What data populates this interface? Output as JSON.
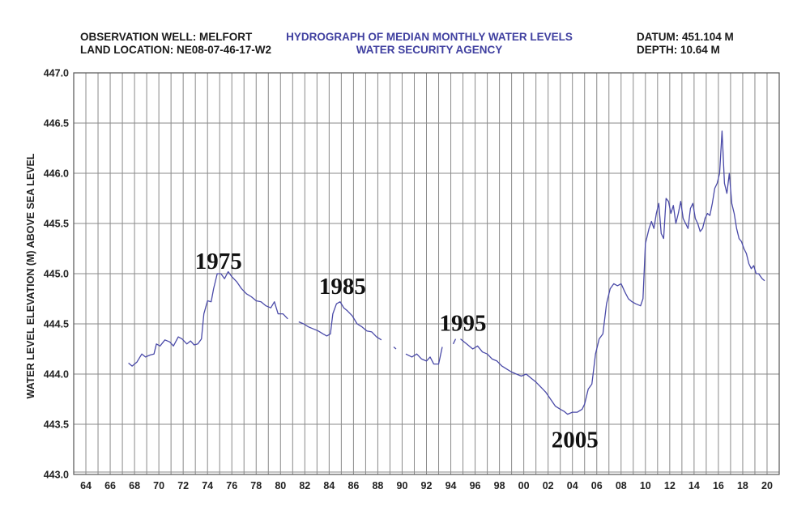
{
  "header": {
    "left_line1": "OBSERVATION WELL: MELFORT",
    "left_line2": "LAND LOCATION: NE08-07-46-17-W2",
    "center_line1": "HYDROGRAPH OF MEDIAN MONTHLY WATER LEVELS",
    "center_line2": "WATER SECURITY AGENCY",
    "right_line1": "DATUM: 451.104 M",
    "right_line2": "DEPTH: 10.64 M"
  },
  "colors": {
    "line": "#4a4aa8",
    "title": "#4040a0",
    "grid": "#8a8a8a",
    "text": "#1a1a1a"
  },
  "chart_data": {
    "type": "line",
    "title": "HYDROGRAPH OF MEDIAN MONTHLY WATER LEVELS",
    "xlabel": "",
    "ylabel": "WATER LEVEL ELEVATION (M) ABOVE SEA LEVEL",
    "xlim": [
      1963,
      2021
    ],
    "ylim": [
      443.0,
      447.0
    ],
    "grid": true,
    "x_ticks": [
      1964,
      1966,
      1968,
      1970,
      1972,
      1974,
      1976,
      1978,
      1980,
      1982,
      1984,
      1986,
      1988,
      1990,
      1992,
      1994,
      1996,
      1998,
      2000,
      2002,
      2004,
      2006,
      2008,
      2010,
      2012,
      2014,
      2016,
      2018,
      2020
    ],
    "x_tick_labels": [
      "64",
      "66",
      "68",
      "70",
      "72",
      "74",
      "76",
      "78",
      "80",
      "82",
      "84",
      "86",
      "88",
      "90",
      "92",
      "94",
      "96",
      "98",
      "00",
      "02",
      "04",
      "06",
      "08",
      "10",
      "12",
      "14",
      "16",
      "18",
      "20"
    ],
    "y_ticks": [
      443.0,
      443.5,
      444.0,
      444.5,
      445.0,
      445.5,
      446.0,
      446.5,
      447.0
    ],
    "y_tick_labels": [
      "443.0",
      "443.5",
      "444.0",
      "444.5",
      "445.0",
      "445.5",
      "446.0",
      "446.5",
      "447.0"
    ],
    "annotations": [
      {
        "text": "1975",
        "x": 1974.9,
        "y": 445.05
      },
      {
        "text": "1985",
        "x": 1985.1,
        "y": 444.8
      },
      {
        "text": "1995",
        "x": 1995.0,
        "y": 444.43
      },
      {
        "text": "2005",
        "x": 2004.2,
        "y": 443.27
      }
    ],
    "series": [
      {
        "segments": [
          [
            [
              1967.5,
              444.11
            ],
            [
              1967.8,
              444.08
            ],
            [
              1968.2,
              444.12
            ],
            [
              1968.6,
              444.2
            ],
            [
              1968.9,
              444.17
            ],
            [
              1969.3,
              444.19
            ],
            [
              1969.6,
              444.2
            ],
            [
              1969.8,
              444.3
            ],
            [
              1970.1,
              444.28
            ],
            [
              1970.5,
              444.34
            ],
            [
              1970.9,
              444.32
            ],
            [
              1971.2,
              444.28
            ],
            [
              1971.6,
              444.37
            ],
            [
              1971.9,
              444.35
            ],
            [
              1972.3,
              444.3
            ],
            [
              1972.6,
              444.33
            ],
            [
              1972.9,
              444.29
            ],
            [
              1973.2,
              444.3
            ],
            [
              1973.5,
              444.35
            ],
            [
              1973.7,
              444.6
            ],
            [
              1974.0,
              444.73
            ],
            [
              1974.3,
              444.72
            ],
            [
              1974.5,
              444.85
            ],
            [
              1974.8,
              445.0
            ],
            [
              1975.1,
              445.0
            ],
            [
              1975.4,
              444.95
            ],
            [
              1975.7,
              445.02
            ],
            [
              1976.0,
              444.97
            ],
            [
              1976.4,
              444.92
            ],
            [
              1976.8,
              444.85
            ],
            [
              1977.2,
              444.8
            ],
            [
              1977.6,
              444.77
            ],
            [
              1978.0,
              444.73
            ],
            [
              1978.4,
              444.72
            ],
            [
              1978.8,
              444.68
            ],
            [
              1979.2,
              444.66
            ],
            [
              1979.5,
              444.72
            ],
            [
              1979.8,
              444.6
            ],
            [
              1980.2,
              444.6
            ],
            [
              1980.6,
              444.55
            ]
          ],
          [
            [
              1981.5,
              444.52
            ],
            [
              1981.9,
              444.5
            ],
            [
              1982.3,
              444.47
            ],
            [
              1982.7,
              444.45
            ],
            [
              1983.1,
              444.43
            ],
            [
              1983.5,
              444.4
            ],
            [
              1983.8,
              444.38
            ],
            [
              1984.1,
              444.4
            ],
            [
              1984.3,
              444.6
            ],
            [
              1984.6,
              444.7
            ],
            [
              1984.9,
              444.72
            ],
            [
              1985.2,
              444.66
            ],
            [
              1985.5,
              444.63
            ],
            [
              1985.9,
              444.58
            ],
            [
              1986.3,
              444.5
            ],
            [
              1986.7,
              444.47
            ],
            [
              1987.1,
              444.43
            ],
            [
              1987.5,
              444.42
            ],
            [
              1987.9,
              444.37
            ],
            [
              1988.3,
              444.34
            ]
          ],
          [
            [
              1989.3,
              444.27
            ],
            [
              1989.5,
              444.25
            ]
          ],
          [
            [
              1990.3,
              444.2
            ],
            [
              1990.8,
              444.17
            ],
            [
              1991.2,
              444.2
            ],
            [
              1991.6,
              444.15
            ],
            [
              1992.0,
              444.13
            ],
            [
              1992.3,
              444.17
            ],
            [
              1992.6,
              444.1
            ],
            [
              1993.0,
              444.1
            ],
            [
              1993.3,
              444.27
            ]
          ],
          [
            [
              1994.2,
              444.3
            ],
            [
              1994.4,
              444.35
            ]
          ],
          [
            [
              1994.8,
              444.35
            ],
            [
              1995.3,
              444.3
            ],
            [
              1995.8,
              444.25
            ],
            [
              1996.2,
              444.28
            ],
            [
              1996.6,
              444.22
            ],
            [
              1997.0,
              444.2
            ],
            [
              1997.4,
              444.15
            ],
            [
              1997.8,
              444.13
            ],
            [
              1998.2,
              444.08
            ],
            [
              1998.6,
              444.05
            ],
            [
              1999.0,
              444.02
            ],
            [
              1999.4,
              444.0
            ],
            [
              1999.8,
              443.98
            ],
            [
              2000.2,
              444.0
            ],
            [
              2000.6,
              443.96
            ],
            [
              2001.0,
              443.92
            ],
            [
              2001.4,
              443.87
            ],
            [
              2001.8,
              443.82
            ],
            [
              2002.2,
              443.75
            ],
            [
              2002.6,
              443.68
            ],
            [
              2003.0,
              443.65
            ],
            [
              2003.3,
              443.63
            ],
            [
              2003.6,
              443.6
            ],
            [
              2004.0,
              443.62
            ],
            [
              2004.4,
              443.62
            ],
            [
              2004.8,
              443.65
            ],
            [
              2005.0,
              443.7
            ],
            [
              2005.3,
              443.85
            ],
            [
              2005.6,
              443.9
            ],
            [
              2005.9,
              444.2
            ],
            [
              2006.2,
              444.35
            ],
            [
              2006.5,
              444.4
            ],
            [
              2006.8,
              444.7
            ],
            [
              2007.1,
              444.85
            ],
            [
              2007.4,
              444.9
            ],
            [
              2007.7,
              444.88
            ],
            [
              2008.0,
              444.9
            ],
            [
              2008.3,
              444.82
            ],
            [
              2008.6,
              444.75
            ],
            [
              2008.9,
              444.72
            ],
            [
              2009.2,
              444.7
            ],
            [
              2009.6,
              444.68
            ],
            [
              2009.8,
              444.75
            ],
            [
              2010.0,
              445.3
            ],
            [
              2010.3,
              445.45
            ],
            [
              2010.5,
              445.52
            ],
            [
              2010.7,
              445.45
            ],
            [
              2010.9,
              445.6
            ],
            [
              2011.1,
              445.7
            ],
            [
              2011.3,
              445.4
            ],
            [
              2011.5,
              445.35
            ],
            [
              2011.7,
              445.75
            ],
            [
              2011.9,
              445.72
            ],
            [
              2012.1,
              445.6
            ],
            [
              2012.3,
              445.68
            ],
            [
              2012.5,
              445.5
            ],
            [
              2012.7,
              445.6
            ],
            [
              2012.9,
              445.72
            ],
            [
              2013.1,
              445.55
            ],
            [
              2013.3,
              445.5
            ],
            [
              2013.5,
              445.45
            ],
            [
              2013.7,
              445.65
            ],
            [
              2013.9,
              445.7
            ],
            [
              2014.1,
              445.55
            ],
            [
              2014.3,
              445.5
            ],
            [
              2014.5,
              445.42
            ],
            [
              2014.7,
              445.45
            ],
            [
              2014.9,
              445.55
            ],
            [
              2015.1,
              445.6
            ],
            [
              2015.3,
              445.58
            ],
            [
              2015.5,
              445.7
            ],
            [
              2015.7,
              445.85
            ],
            [
              2015.9,
              445.9
            ],
            [
              2016.1,
              446.0
            ],
            [
              2016.3,
              446.42
            ],
            [
              2016.5,
              445.9
            ],
            [
              2016.7,
              445.8
            ],
            [
              2016.9,
              446.0
            ],
            [
              2017.1,
              445.7
            ],
            [
              2017.3,
              445.6
            ],
            [
              2017.5,
              445.45
            ],
            [
              2017.7,
              445.35
            ],
            [
              2017.9,
              445.32
            ],
            [
              2018.1,
              445.25
            ],
            [
              2018.3,
              445.2
            ],
            [
              2018.5,
              445.1
            ],
            [
              2018.7,
              445.05
            ],
            [
              2018.9,
              445.08
            ],
            [
              2019.1,
              445.0
            ],
            [
              2019.3,
              445.0
            ],
            [
              2019.6,
              444.95
            ],
            [
              2019.8,
              444.93
            ]
          ]
        ]
      }
    ]
  }
}
